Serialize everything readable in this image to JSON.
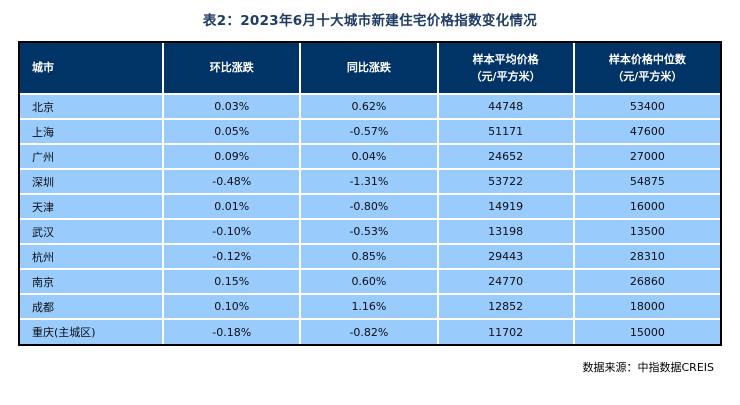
{
  "page": {
    "title": "表2：2023年6月十大城市新建住宅价格指数变化情况",
    "source_note": "数据来源：中指数据CREIS"
  },
  "colors": {
    "title_text": "#1E3C64",
    "header_bg": "#003366",
    "header_text": "#FFFFFF",
    "row_bg": "#99CCFC",
    "cell_text": "#0D0D14",
    "outer_border": "#000000",
    "grid_separator": "#FFFFFF"
  },
  "table": {
    "header_city": "城市",
    "header_mom": "环比涨跌",
    "header_yoy": "同比涨跌",
    "header_avg_line1": "样本平均价格",
    "header_avg_line2": "（元/平方米）",
    "header_median_line1": "样本价格中位数",
    "header_median_line2": "（元/平方米）",
    "rows": [
      {
        "city": "北京",
        "mom": "0.03%",
        "yoy": "0.62%",
        "avg": "44748",
        "median": "53400"
      },
      {
        "city": "上海",
        "mom": "0.05%",
        "yoy": "-0.57%",
        "avg": "51171",
        "median": "47600"
      },
      {
        "city": "广州",
        "mom": "0.09%",
        "yoy": "0.04%",
        "avg": "24652",
        "median": "27000"
      },
      {
        "city": "深圳",
        "mom": "-0.48%",
        "yoy": "-1.31%",
        "avg": "53722",
        "median": "54875"
      },
      {
        "city": "天津",
        "mom": "0.01%",
        "yoy": "-0.80%",
        "avg": "14919",
        "median": "16000"
      },
      {
        "city": "武汉",
        "mom": "-0.10%",
        "yoy": "-0.53%",
        "avg": "13198",
        "median": "13500"
      },
      {
        "city": "杭州",
        "mom": "-0.12%",
        "yoy": "0.85%",
        "avg": "29443",
        "median": "28310"
      },
      {
        "city": "南京",
        "mom": "0.15%",
        "yoy": "0.60%",
        "avg": "24770",
        "median": "26860"
      },
      {
        "city": "成都",
        "mom": "0.10%",
        "yoy": "1.16%",
        "avg": "12852",
        "median": "18000"
      },
      {
        "city": "重庆(主城区)",
        "mom": "-0.18%",
        "yoy": "-0.82%",
        "avg": "11702",
        "median": "15000"
      }
    ]
  },
  "chart_data": {
    "type": "table",
    "title": "表2：2023年6月十大城市新建住宅价格指数变化情况",
    "columns": [
      "城市",
      "环比涨跌",
      "同比涨跌",
      "样本平均价格（元/平方米）",
      "样本价格中位数（元/平方米）"
    ],
    "rows": [
      [
        "北京",
        "0.03%",
        "0.62%",
        44748,
        53400
      ],
      [
        "上海",
        "0.05%",
        "-0.57%",
        51171,
        47600
      ],
      [
        "广州",
        "0.09%",
        "0.04%",
        24652,
        27000
      ],
      [
        "深圳",
        "-0.48%",
        "-1.31%",
        53722,
        54875
      ],
      [
        "天津",
        "0.01%",
        "-0.80%",
        14919,
        16000
      ],
      [
        "武汉",
        "-0.10%",
        "-0.53%",
        13198,
        13500
      ],
      [
        "杭州",
        "-0.12%",
        "0.85%",
        29443,
        28310
      ],
      [
        "南京",
        "0.15%",
        "0.60%",
        24770,
        26860
      ],
      [
        "成都",
        "0.10%",
        "1.16%",
        12852,
        18000
      ],
      [
        "重庆(主城区)",
        "-0.18%",
        "-0.82%",
        11702,
        15000
      ]
    ],
    "source": "数据来源：中指数据CREIS",
    "layout": {
      "header_style": "navy-bg-white-text",
      "body_style": "light-blue-bg",
      "grid": "white-separators",
      "outer_border": "black"
    }
  }
}
